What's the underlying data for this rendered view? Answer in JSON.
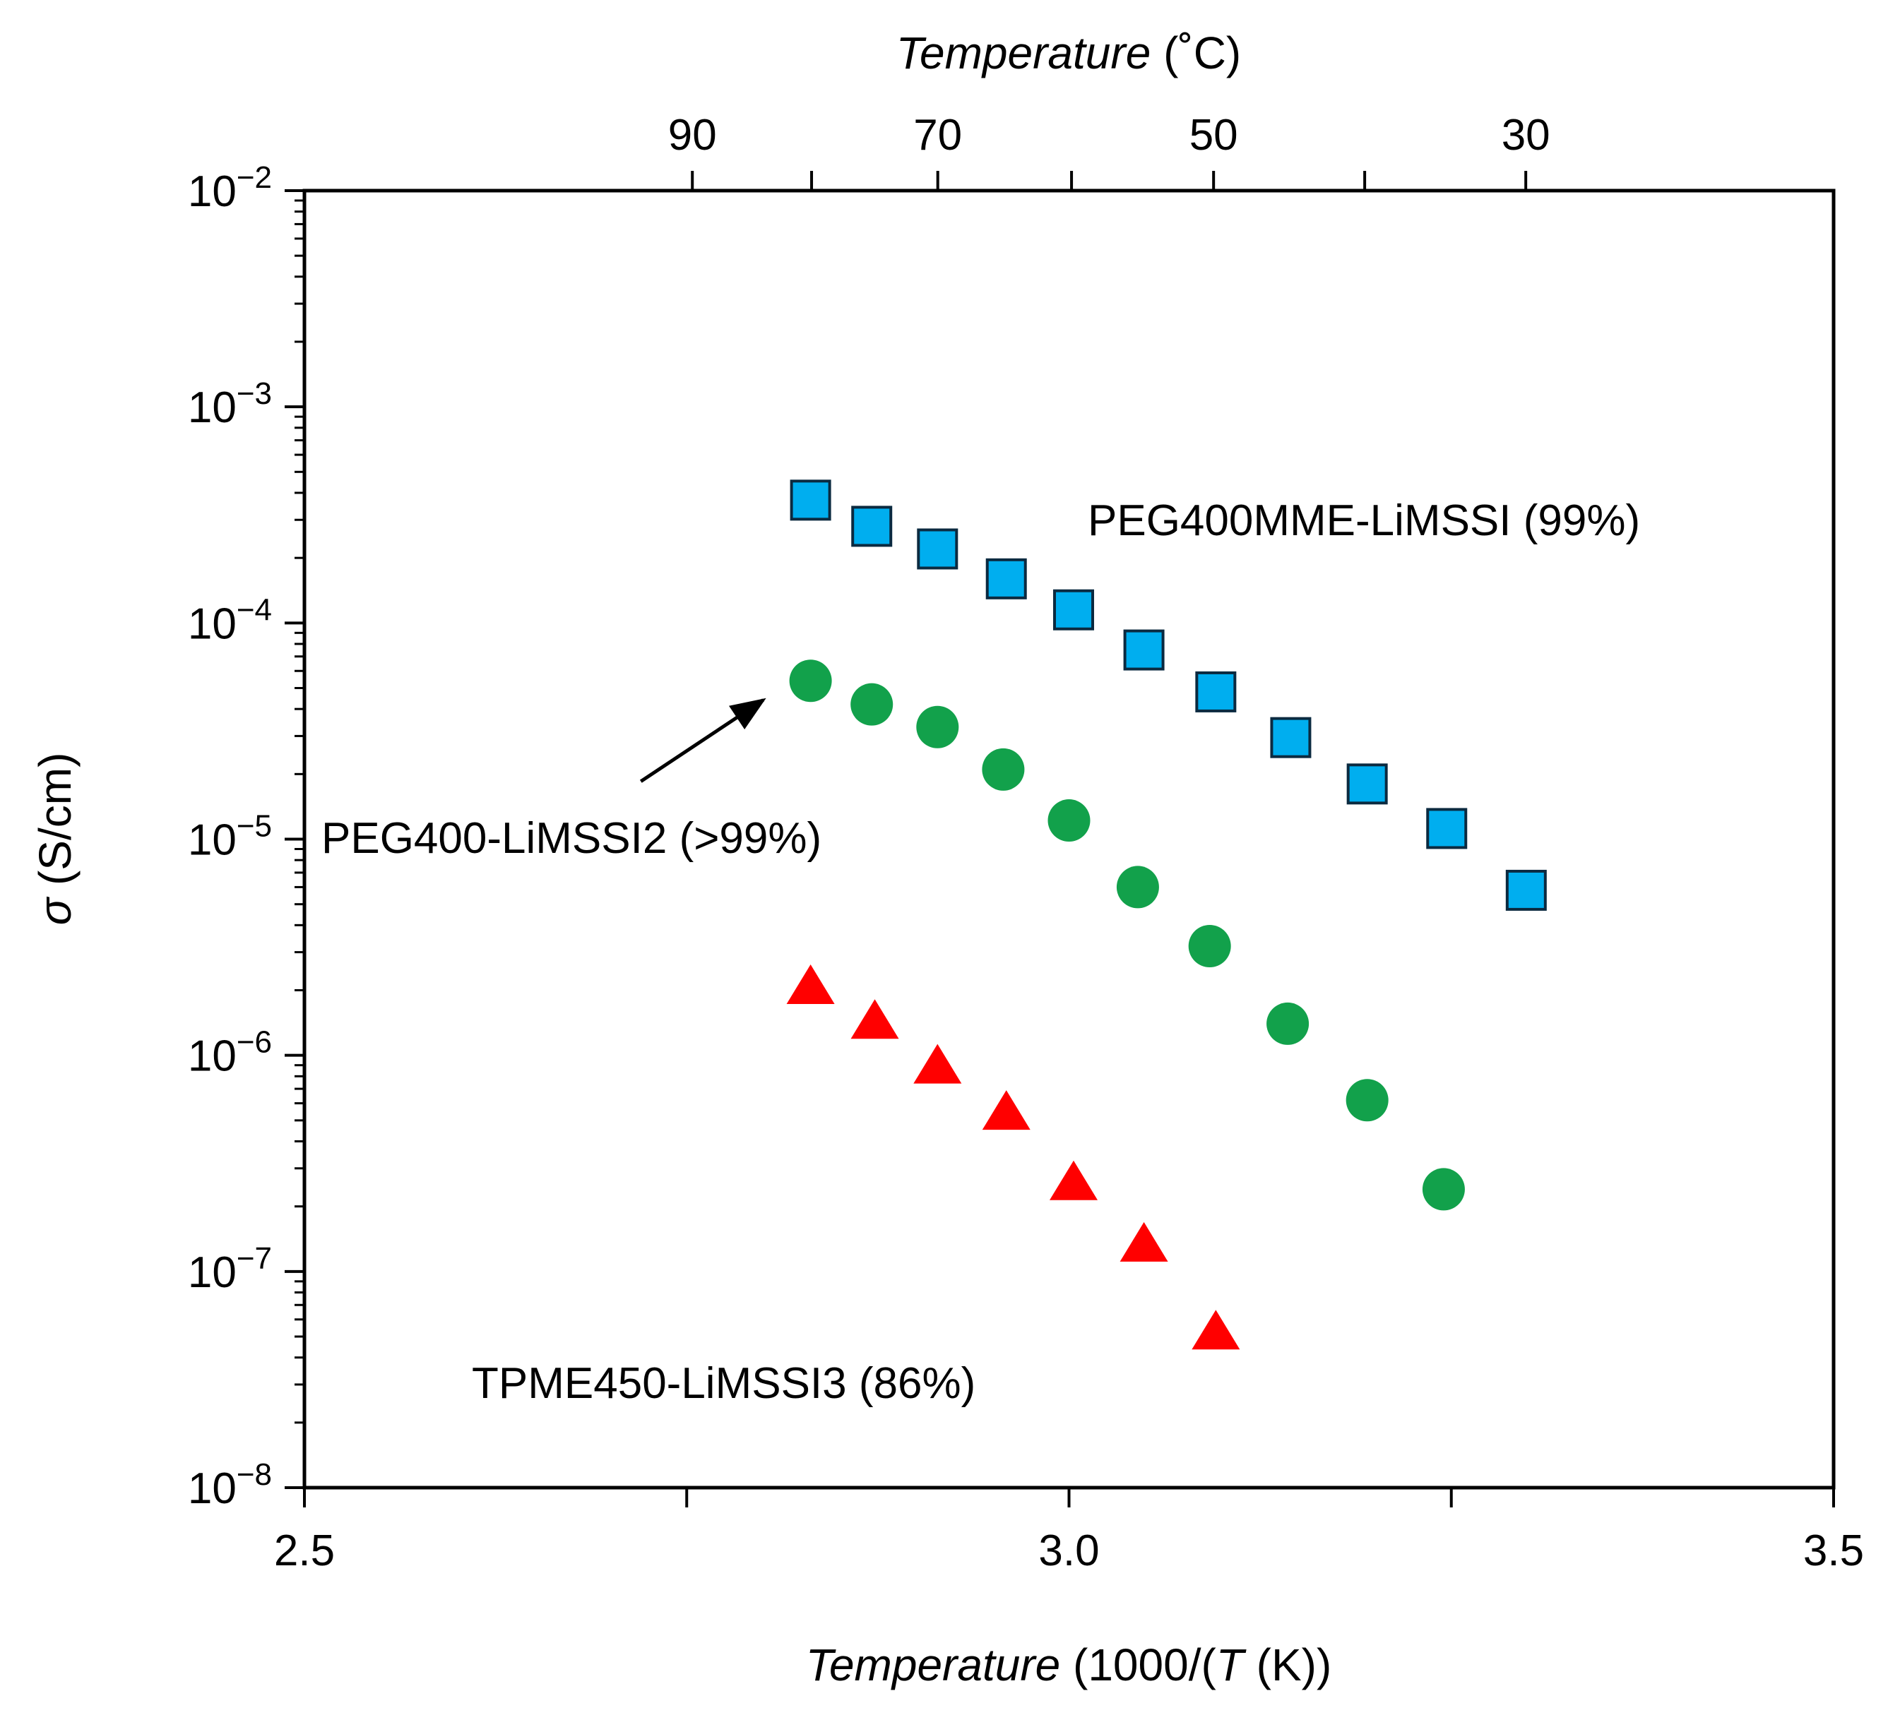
{
  "chart_data": {
    "type": "scatter",
    "x_axis": {
      "label_italic": "Temperature",
      "label_rest_pre": " (1000/(",
      "label_var": "T",
      "label_rest_post": " (K))",
      "range": [
        2.5,
        3.5
      ],
      "ticks": [
        2.5,
        2.75,
        3.0,
        3.25,
        3.5
      ],
      "tick_labels": [
        "2.5",
        "",
        "3.0",
        "",
        "3.5"
      ]
    },
    "top_axis": {
      "label_italic": "Temperature",
      "label_rest": " (˚C)",
      "ticks_celsius": [
        90,
        80,
        70,
        60,
        50,
        40,
        30
      ],
      "tick_labels": [
        "90",
        "",
        "70",
        "",
        "50",
        "",
        "30"
      ]
    },
    "y_axis": {
      "label_symbol": "σ",
      "label_rest": " (S/cm)",
      "scale": "log",
      "range": [
        1e-08,
        0.01
      ],
      "tick_exponents": [
        -2,
        -3,
        -4,
        -5,
        -6,
        -7,
        -8
      ],
      "tick_base": "10",
      "tick_exp_labels": [
        "−2",
        "−3",
        "−4",
        "−5",
        "−6",
        "−7",
        "−8"
      ]
    },
    "series": [
      {
        "name": "PEG400MME-LiMSSI (99%)",
        "marker": "square",
        "color": "#00AEEF",
        "label_color": "#1A1AE6",
        "x": [
          2.831,
          2.871,
          2.914,
          2.959,
          3.003,
          3.049,
          3.096,
          3.145,
          3.195,
          3.247,
          3.299
        ],
        "y": [
          0.00037,
          0.00028,
          0.00022,
          0.00016,
          0.000115,
          7.5e-05,
          4.8e-05,
          2.95e-05,
          1.8e-05,
          1.12e-05,
          5.8e-06
        ]
      },
      {
        "name": "PEG400-LiMSSI2 (>99%)",
        "marker": "circle",
        "color": "#12A14B",
        "label_color": "#138A43",
        "x": [
          2.831,
          2.871,
          2.914,
          2.957,
          3.0,
          3.045,
          3.092,
          3.143,
          3.195,
          3.245
        ],
        "y": [
          5.4e-05,
          4.2e-05,
          3.3e-05,
          2.1e-05,
          1.22e-05,
          6e-06,
          3.2e-06,
          1.4e-06,
          6.2e-07,
          2.4e-07
        ]
      },
      {
        "name": "TPME450-LiMSSI3 (86%)",
        "marker": "triangle",
        "color": "#FF0000",
        "label_color": "#E61A1A",
        "x": [
          2.831,
          2.873,
          2.914,
          2.959,
          3.003,
          3.049,
          3.096
        ],
        "y": [
          2.1e-06,
          1.45e-06,
          9e-07,
          5.5e-07,
          2.6e-07,
          1.35e-07,
          5.3e-08
        ]
      }
    ],
    "annotation": {
      "type": "arrow",
      "from": [
        2.72,
        1.85e-05
      ],
      "to": [
        2.8,
        4.4e-05
      ]
    },
    "grid": false,
    "legend": "inline labels"
  }
}
